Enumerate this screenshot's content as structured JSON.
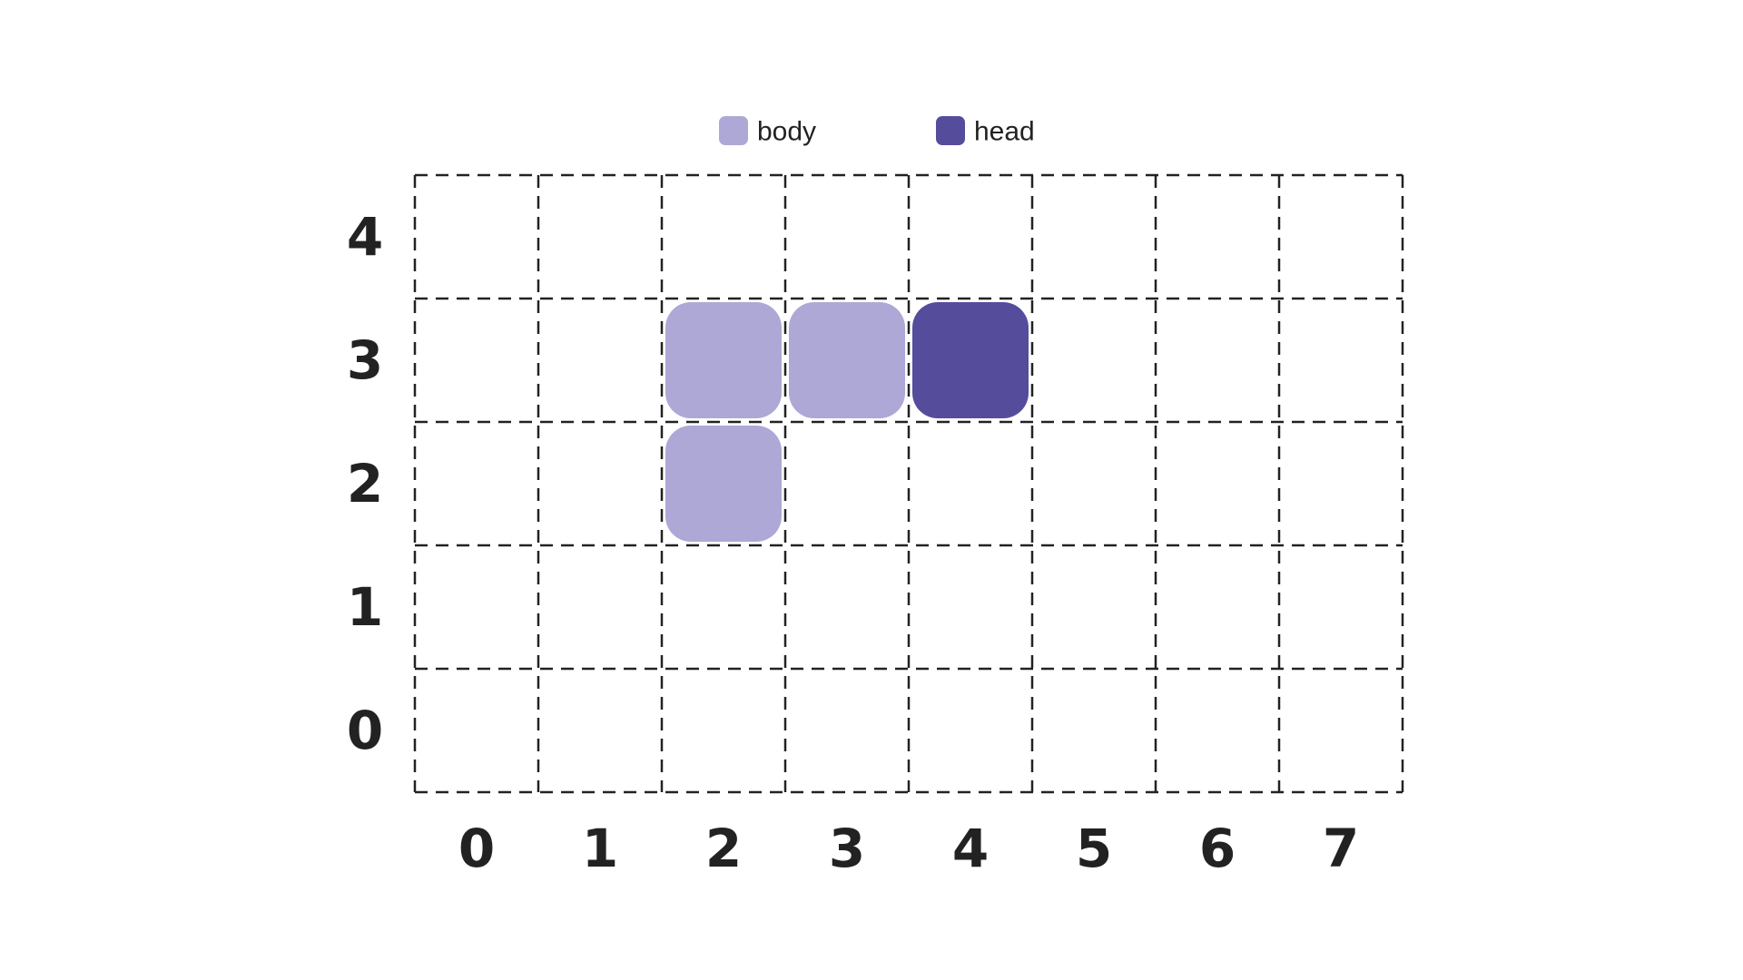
{
  "legend": {
    "items": [
      {
        "label": "body",
        "color": "#ADA8D6"
      },
      {
        "label": "head",
        "color": "#554C9C"
      }
    ]
  },
  "grid": {
    "columns": 8,
    "rows": 5,
    "x_labels": [
      "0",
      "1",
      "2",
      "3",
      "4",
      "5",
      "6",
      "7"
    ],
    "y_labels": [
      "0",
      "1",
      "2",
      "3",
      "4"
    ]
  },
  "snake": {
    "body_color": "#ADA8D6",
    "head_color": "#554C9C",
    "segments": [
      {
        "x": 2,
        "y": 2,
        "part": "body"
      },
      {
        "x": 2,
        "y": 3,
        "part": "body"
      },
      {
        "x": 3,
        "y": 3,
        "part": "body"
      },
      {
        "x": 4,
        "y": 3,
        "part": "head"
      }
    ]
  }
}
